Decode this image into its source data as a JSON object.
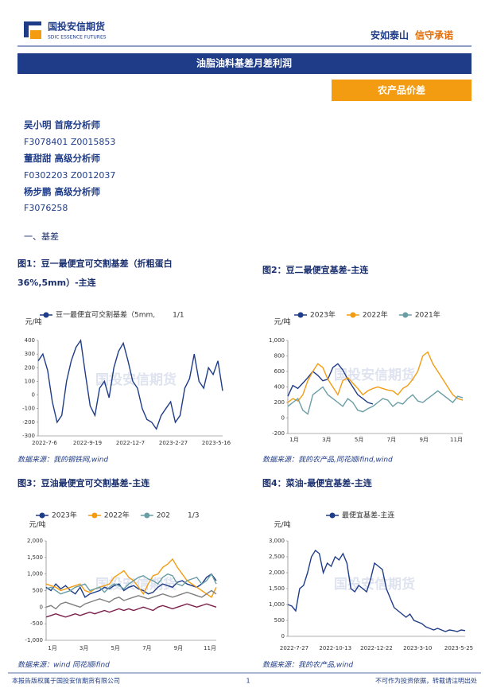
{
  "header": {
    "company": "国投安信期货",
    "company_en": "SDIC ESSENCE FUTURES",
    "slogan_1": "安如泰山",
    "slogan_2": "信守承诺",
    "title": "油脂油料基差月差利润",
    "tag": "农产品价差"
  },
  "analysts": [
    {
      "name": "吴小明 首席分析师",
      "cert": "F3078401 Z0015853"
    },
    {
      "name": "董甜甜 高级分析师",
      "cert": "F0302203 Z0012037"
    },
    {
      "name": "杨步鹏 高级分析师",
      "cert": "F3076258"
    }
  ],
  "section": "一、基差",
  "watermark": "国投安信期货",
  "figures": [
    {
      "title": [
        "图1：豆一最便宜可交割基差（折粗蛋白",
        "36%,5mm）-主连"
      ],
      "source": "数据来源：我的钢铁网,wind",
      "chart": {
        "type": "line",
        "y_label": "元/吨",
        "pager": "1/1",
        "ylim": [
          -300,
          400
        ],
        "yticks": [
          -300,
          -200,
          -100,
          0,
          100,
          200,
          300,
          400
        ],
        "x_labels": [
          "2022-7-6",
          "2022-9-19",
          "2022-12-7",
          "2023-2-27",
          "2023-5-16"
        ],
        "series": [
          {
            "name": "豆一最便宜可交割基差（5mm,",
            "color": "#1f3c88",
            "values": [
              250,
              300,
              180,
              -50,
              -200,
              -150,
              100,
              250,
              350,
              400,
              150,
              -80,
              -150,
              50,
              100,
              -20,
              200,
              320,
              380,
              250,
              100,
              50,
              -100,
              -180,
              -200,
              -250,
              -150,
              -100,
              -50,
              -200,
              -150,
              50,
              120,
              300,
              100,
              50,
              200,
              150,
              250,
              30
            ]
          }
        ]
      }
    },
    {
      "title": [
        "图2：豆二最便宜基差-主连"
      ],
      "source": "数据来源：我的农产品,同花顺ifind,wind",
      "chart": {
        "type": "line",
        "y_label": "元/吨",
        "ylim": [
          -200,
          1000
        ],
        "yticks": [
          -200,
          0,
          200,
          400,
          600,
          800,
          {
            "value": 1000,
            "label": "1,000"
          }
        ],
        "x_labels": [
          "1月",
          "3月",
          "5月",
          "7月",
          "9月",
          "11月"
        ],
        "series": [
          {
            "name": "2023年",
            "color": "#1f3c88",
            "values": [
              280,
              420,
              380,
              450,
              520,
              600,
              550,
              480,
              500,
              650,
              700,
              620,
              500,
              400,
              300,
              250,
              200,
              180,
              null,
              null,
              null,
              null,
              null,
              null,
              null,
              null,
              null,
              null,
              null,
              null,
              null,
              null,
              null,
              null,
              null,
              null
            ]
          },
          {
            "name": "2022年",
            "color": "#f39c12",
            "values": [
              200,
              250,
              220,
              300,
              480,
              600,
              700,
              650,
              500,
              400,
              300,
              480,
              520,
              450,
              380,
              300,
              350,
              380,
              400,
              380,
              360,
              350,
              300,
              380,
              420,
              500,
              600,
              800,
              850,
              700,
              600,
              500,
              400,
              300,
              250,
              230
            ]
          },
          {
            "name": "2021年",
            "color": "#6a9ea5",
            "values": [
              150,
              200,
              250,
              100,
              50,
              300,
              350,
              400,
              300,
              250,
              200,
              150,
              250,
              200,
              100,
              80,
              120,
              150,
              200,
              250,
              230,
              150,
              200,
              180,
              250,
              300,
              220,
              200,
              250,
              300,
              350,
              300,
              250,
              200,
              280,
              260
            ]
          }
        ]
      }
    },
    {
      "title": [
        "图3：豆油最便宜可交割基差-主连"
      ],
      "source": "数据来源：wind 同花顺ifind",
      "chart": {
        "type": "line",
        "y_label": "元/吨",
        "pager": "1/3",
        "ylim": [
          -1000,
          2000
        ],
        "yticks": [
          {
            "value": -1000,
            "label": "-1,000"
          },
          -500,
          0,
          500,
          {
            "value": 1000,
            "label": "1,000"
          },
          {
            "value": 1500,
            "label": "1,500"
          },
          {
            "value": 2000,
            "label": "2,000"
          }
        ],
        "x_labels": [
          "1月",
          "3月",
          "5月",
          "7月",
          "9月",
          "11月"
        ],
        "series": [
          {
            "name": "2023年",
            "color": "#1f3c88",
            "values": [
              600,
              500,
              700,
              550,
              650,
              500,
              400,
              600,
              300,
              400,
              450,
              500,
              600,
              550,
              650,
              700,
              500,
              600,
              650,
              550,
              500,
              400,
              450,
              600,
              700,
              650,
              600,
              750,
              800,
              700,
              650,
              600,
              700,
              900,
              1000,
              800
            ]
          },
          {
            "name": "2022年",
            "color": "#f39c12",
            "values": [
              700,
              650,
              600,
              500,
              550,
              600,
              650,
              700,
              500,
              450,
              550,
              600,
              650,
              700,
              900,
              1000,
              1100,
              900,
              800,
              600,
              400,
              700,
              950,
              1000,
              1200,
              1300,
              1450,
              1200,
              1000,
              800,
              700,
              600,
              500,
              400,
              300,
              600
            ]
          },
          {
            "name": "202",
            "color": "#6a9ea5",
            "values": [
              550,
              600,
              500,
              400,
              450,
              500,
              600,
              650,
              700,
              500,
              550,
              600,
              450,
              600,
              700,
              650,
              550,
              700,
              800,
              900,
              950,
              850,
              800,
              700,
              900,
              1000,
              950,
              700,
              650,
              800,
              850,
              900,
              700,
              800,
              1000,
              700
            ]
          },
          {
            "color": "#7f7f7f",
            "values": [
              0,
              50,
              -50,
              100,
              150,
              100,
              50,
              0,
              100,
              150,
              200,
              250,
              200,
              150,
              250,
              300,
              200,
              250,
              300,
              350,
              300,
              250,
              300,
              350,
              400,
              350,
              300,
              350,
              400,
              450,
              400,
              350,
              300,
              400,
              500,
              400
            ]
          },
          {
            "color": "#7b1f4b",
            "values": [
              -300,
              -250,
              -200,
              -250,
              -300,
              -250,
              -200,
              -250,
              -200,
              -150,
              -200,
              -150,
              -100,
              -150,
              -100,
              -50,
              -100,
              -50,
              -100,
              -50,
              0,
              -50,
              -100,
              0,
              50,
              0,
              -50,
              0,
              50,
              100,
              50,
              0,
              50,
              100,
              50,
              0
            ]
          }
        ]
      }
    },
    {
      "title": [
        "图4：菜油-最便宜基差-主连"
      ],
      "source": "数据来源：我的农产品,wind",
      "chart": {
        "type": "line",
        "y_label": "元/吨",
        "ylim": [
          0,
          3000
        ],
        "yticks": [
          0,
          500,
          {
            "value": 1000,
            "label": "1,000"
          },
          {
            "value": 1500,
            "label": "1,500"
          },
          {
            "value": 2000,
            "label": "2,000"
          },
          {
            "value": 2500,
            "label": "2,500"
          },
          {
            "value": 3000,
            "label": "3,000"
          }
        ],
        "x_labels": [
          "2022-7-27",
          "2022-10-13",
          "2022-12-22",
          "2023-3-10",
          "2023-5-25"
        ],
        "series": [
          {
            "name": "最便宜基差-主连",
            "color": "#1f3c88",
            "values": [
              1000,
              950,
              800,
              1500,
              1600,
              2000,
              2500,
              2700,
              2600,
              2000,
              2300,
              2200,
              2500,
              2400,
              2600,
              2300,
              1500,
              1400,
              1600,
              1500,
              1400,
              1800,
              2300,
              2200,
              2100,
              1500,
              1200,
              900,
              800,
              700,
              600,
              700,
              500,
              450,
              400,
              300,
              250,
              200,
              250,
              200,
              150,
              200,
              180,
              150,
              200,
              180
            ]
          }
        ]
      }
    }
  ],
  "footer": {
    "left": "本报告版权属于国投安信期货有限公司",
    "page": "1",
    "right": "不可作为投资依据，转载请注明出处"
  }
}
